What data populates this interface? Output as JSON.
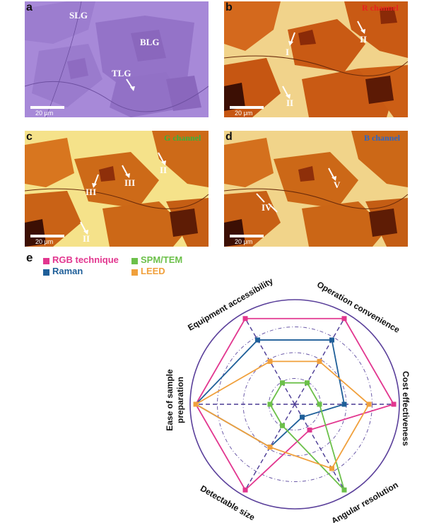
{
  "panels": {
    "a": {
      "label": "a",
      "texts": [
        "SLG",
        "BLG",
        "TLG"
      ],
      "scale": "20 μm"
    },
    "b": {
      "label": "b",
      "channel": "R channel",
      "texts": [
        "I",
        "II",
        "II"
      ],
      "scale": "20 μm"
    },
    "c": {
      "label": "c",
      "channel": "G channel",
      "texts": [
        "II",
        "III",
        "III",
        "II"
      ],
      "scale": "20 μm"
    },
    "d": {
      "label": "d",
      "channel": "B channel",
      "texts": [
        "V",
        "IV"
      ],
      "scale": "20 μm"
    }
  },
  "radar": {
    "label": "e",
    "legend": [
      {
        "name": "RGB technique",
        "color": "#e2368f"
      },
      {
        "name": "SPM/TEM",
        "color": "#6cc04a"
      },
      {
        "name": "Raman",
        "color": "#1f5f99"
      },
      {
        "name": "LEED",
        "color": "#f0a03c"
      }
    ],
    "axes": [
      "Equipment accessibility",
      "Operation convenience",
      "Cost effectiveness",
      "Angular resolution",
      "Detectable size",
      "Ease of sample preparation"
    ]
  },
  "chart_data": {
    "type": "radar",
    "axes": [
      "Equipment accessibility",
      "Operation convenience",
      "Cost effectiveness",
      "Angular resolution",
      "Detectable size",
      "Ease of sample preparation"
    ],
    "range": [
      0,
      1
    ],
    "series": [
      {
        "name": "RGB technique",
        "color": "#e2368f",
        "values": [
          1.0,
          1.0,
          1.0,
          0.3,
          1.0,
          1.0
        ]
      },
      {
        "name": "Raman",
        "color": "#1f5f99",
        "values": [
          0.75,
          0.75,
          0.5,
          0.15,
          0.5,
          1.0
        ]
      },
      {
        "name": "SPM/TEM",
        "color": "#6cc04a",
        "values": [
          0.25,
          0.25,
          0.25,
          1.0,
          0.25,
          0.25
        ]
      },
      {
        "name": "LEED",
        "color": "#f0a03c",
        "values": [
          0.5,
          0.5,
          0.75,
          0.75,
          0.5,
          1.0
        ]
      }
    ]
  }
}
